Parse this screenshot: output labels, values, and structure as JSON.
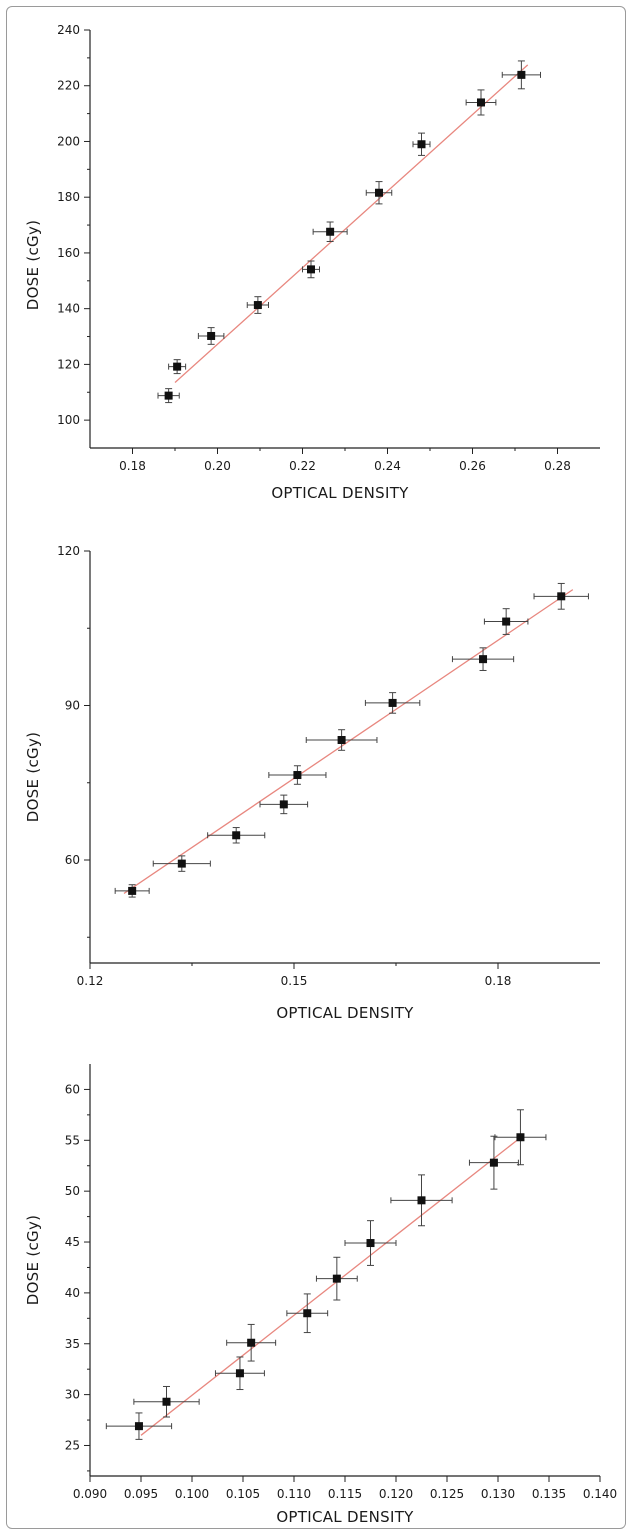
{
  "chart_data": [
    {
      "type": "scatter",
      "title": "",
      "xlabel": "OPTICAL DENSITY",
      "ylabel": "DOSE (cGy)",
      "xlim": [
        0.17,
        0.29
      ],
      "ylim": [
        90,
        240
      ],
      "x_ticks": [
        0.18,
        0.2,
        0.22,
        0.24,
        0.26,
        0.28
      ],
      "x_tick_labels": [
        "0.18",
        "0.20",
        "0.22",
        "0.24",
        "0.26",
        "0.28"
      ],
      "y_ticks": [
        100,
        120,
        140,
        160,
        180,
        200,
        220,
        240
      ],
      "y_tick_labels": [
        "100",
        "120",
        "140",
        "160",
        "180",
        "200",
        "220",
        "240"
      ],
      "fit_line": {
        "color": "#e8877f",
        "x": [
          0.19,
          0.273
        ],
        "y": [
          113.5,
          227.5
        ]
      },
      "points": [
        {
          "x": 0.1885,
          "y": 108.8,
          "xerr": 0.0025,
          "yerr": 2.5
        },
        {
          "x": 0.1905,
          "y": 119.2,
          "xerr": 0.002,
          "yerr": 2.5
        },
        {
          "x": 0.1985,
          "y": 130.2,
          "xerr": 0.003,
          "yerr": 3.0
        },
        {
          "x": 0.2095,
          "y": 141.3,
          "xerr": 0.0025,
          "yerr": 3.0
        },
        {
          "x": 0.222,
          "y": 154.1,
          "xerr": 0.002,
          "yerr": 3.0
        },
        {
          "x": 0.2265,
          "y": 167.6,
          "xerr": 0.004,
          "yerr": 3.5
        },
        {
          "x": 0.238,
          "y": 181.6,
          "xerr": 0.003,
          "yerr": 4.0
        },
        {
          "x": 0.248,
          "y": 199.0,
          "xerr": 0.002,
          "yerr": 4.0
        },
        {
          "x": 0.262,
          "y": 214.0,
          "xerr": 0.0035,
          "yerr": 4.5
        },
        {
          "x": 0.2715,
          "y": 223.9,
          "xerr": 0.0045,
          "yerr": 5.0
        }
      ]
    },
    {
      "type": "scatter",
      "title": "",
      "xlabel": "OPTICAL DENSITY",
      "ylabel": "DOSE (cGy)",
      "xlim": [
        0.12,
        0.195
      ],
      "ylim": [
        40,
        120
      ],
      "x_ticks": [
        0.12,
        0.15,
        0.18
      ],
      "x_tick_labels": [
        "0.12",
        "0.15",
        "0.18"
      ],
      "y_ticks": [
        60,
        90,
        120
      ],
      "y_tick_labels": [
        "60",
        "90",
        "120"
      ],
      "fit_line": {
        "color": "#e8877f",
        "x": [
          0.125,
          0.191
        ],
        "y": [
          53.5,
          112.5
        ]
      },
      "points": [
        {
          "x": 0.1262,
          "y": 54.0,
          "xerr": 0.0025,
          "yerr": 1.2
        },
        {
          "x": 0.1335,
          "y": 59.3,
          "xerr": 0.0042,
          "yerr": 1.5
        },
        {
          "x": 0.1415,
          "y": 64.8,
          "xerr": 0.0042,
          "yerr": 1.5
        },
        {
          "x": 0.1485,
          "y": 70.8,
          "xerr": 0.0035,
          "yerr": 1.8
        },
        {
          "x": 0.1505,
          "y": 76.5,
          "xerr": 0.0042,
          "yerr": 1.8
        },
        {
          "x": 0.157,
          "y": 83.3,
          "xerr": 0.0052,
          "yerr": 2.0
        },
        {
          "x": 0.1645,
          "y": 90.5,
          "xerr": 0.004,
          "yerr": 2.0
        },
        {
          "x": 0.1778,
          "y": 99.0,
          "xerr": 0.0045,
          "yerr": 2.2
        },
        {
          "x": 0.1812,
          "y": 106.3,
          "xerr": 0.0032,
          "yerr": 2.5
        },
        {
          "x": 0.1893,
          "y": 111.2,
          "xerr": 0.004,
          "yerr": 2.5
        }
      ]
    },
    {
      "type": "scatter",
      "title": "",
      "xlabel": "OPTICAL DENSITY",
      "ylabel": "DOSE (cGy)",
      "xlim": [
        0.09,
        0.14
      ],
      "ylim": [
        22,
        62.5
      ],
      "x_ticks": [
        0.09,
        0.095,
        0.1,
        0.105,
        0.11,
        0.115,
        0.12,
        0.125,
        0.13,
        0.135,
        0.14
      ],
      "x_tick_labels": [
        "0.090",
        "0.095",
        "0.100",
        "0.105",
        "0.110",
        "0.115",
        "0.120",
        "0.125",
        "0.130",
        "0.135",
        "0.140"
      ],
      "y_ticks": [
        25,
        30,
        35,
        40,
        45,
        50,
        55,
        60
      ],
      "y_tick_labels": [
        "25",
        "30",
        "35",
        "40",
        "45",
        "50",
        "55",
        "60"
      ],
      "fit_line": {
        "color": "#e8877f",
        "x": [
          0.095,
          0.1325
        ],
        "y": [
          26.0,
          55.5
        ]
      },
      "points": [
        {
          "x": 0.0948,
          "y": 26.9,
          "xerr": 0.0032,
          "yerr": 1.3
        },
        {
          "x": 0.0975,
          "y": 29.3,
          "xerr": 0.0032,
          "yerr": 1.5
        },
        {
          "x": 0.1047,
          "y": 32.1,
          "xerr": 0.0024,
          "yerr": 1.6
        },
        {
          "x": 0.1058,
          "y": 35.1,
          "xerr": 0.0024,
          "yerr": 1.8
        },
        {
          "x": 0.1113,
          "y": 38.0,
          "xerr": 0.002,
          "yerr": 1.9
        },
        {
          "x": 0.1142,
          "y": 41.4,
          "xerr": 0.002,
          "yerr": 2.1
        },
        {
          "x": 0.1175,
          "y": 44.9,
          "xerr": 0.0025,
          "yerr": 2.2
        },
        {
          "x": 0.1225,
          "y": 49.1,
          "xerr": 0.003,
          "yerr": 2.5
        },
        {
          "x": 0.1296,
          "y": 52.8,
          "xerr": 0.0024,
          "yerr": 2.6
        },
        {
          "x": 0.1322,
          "y": 55.3,
          "xerr": 0.0025,
          "yerr": 2.7
        }
      ]
    }
  ]
}
